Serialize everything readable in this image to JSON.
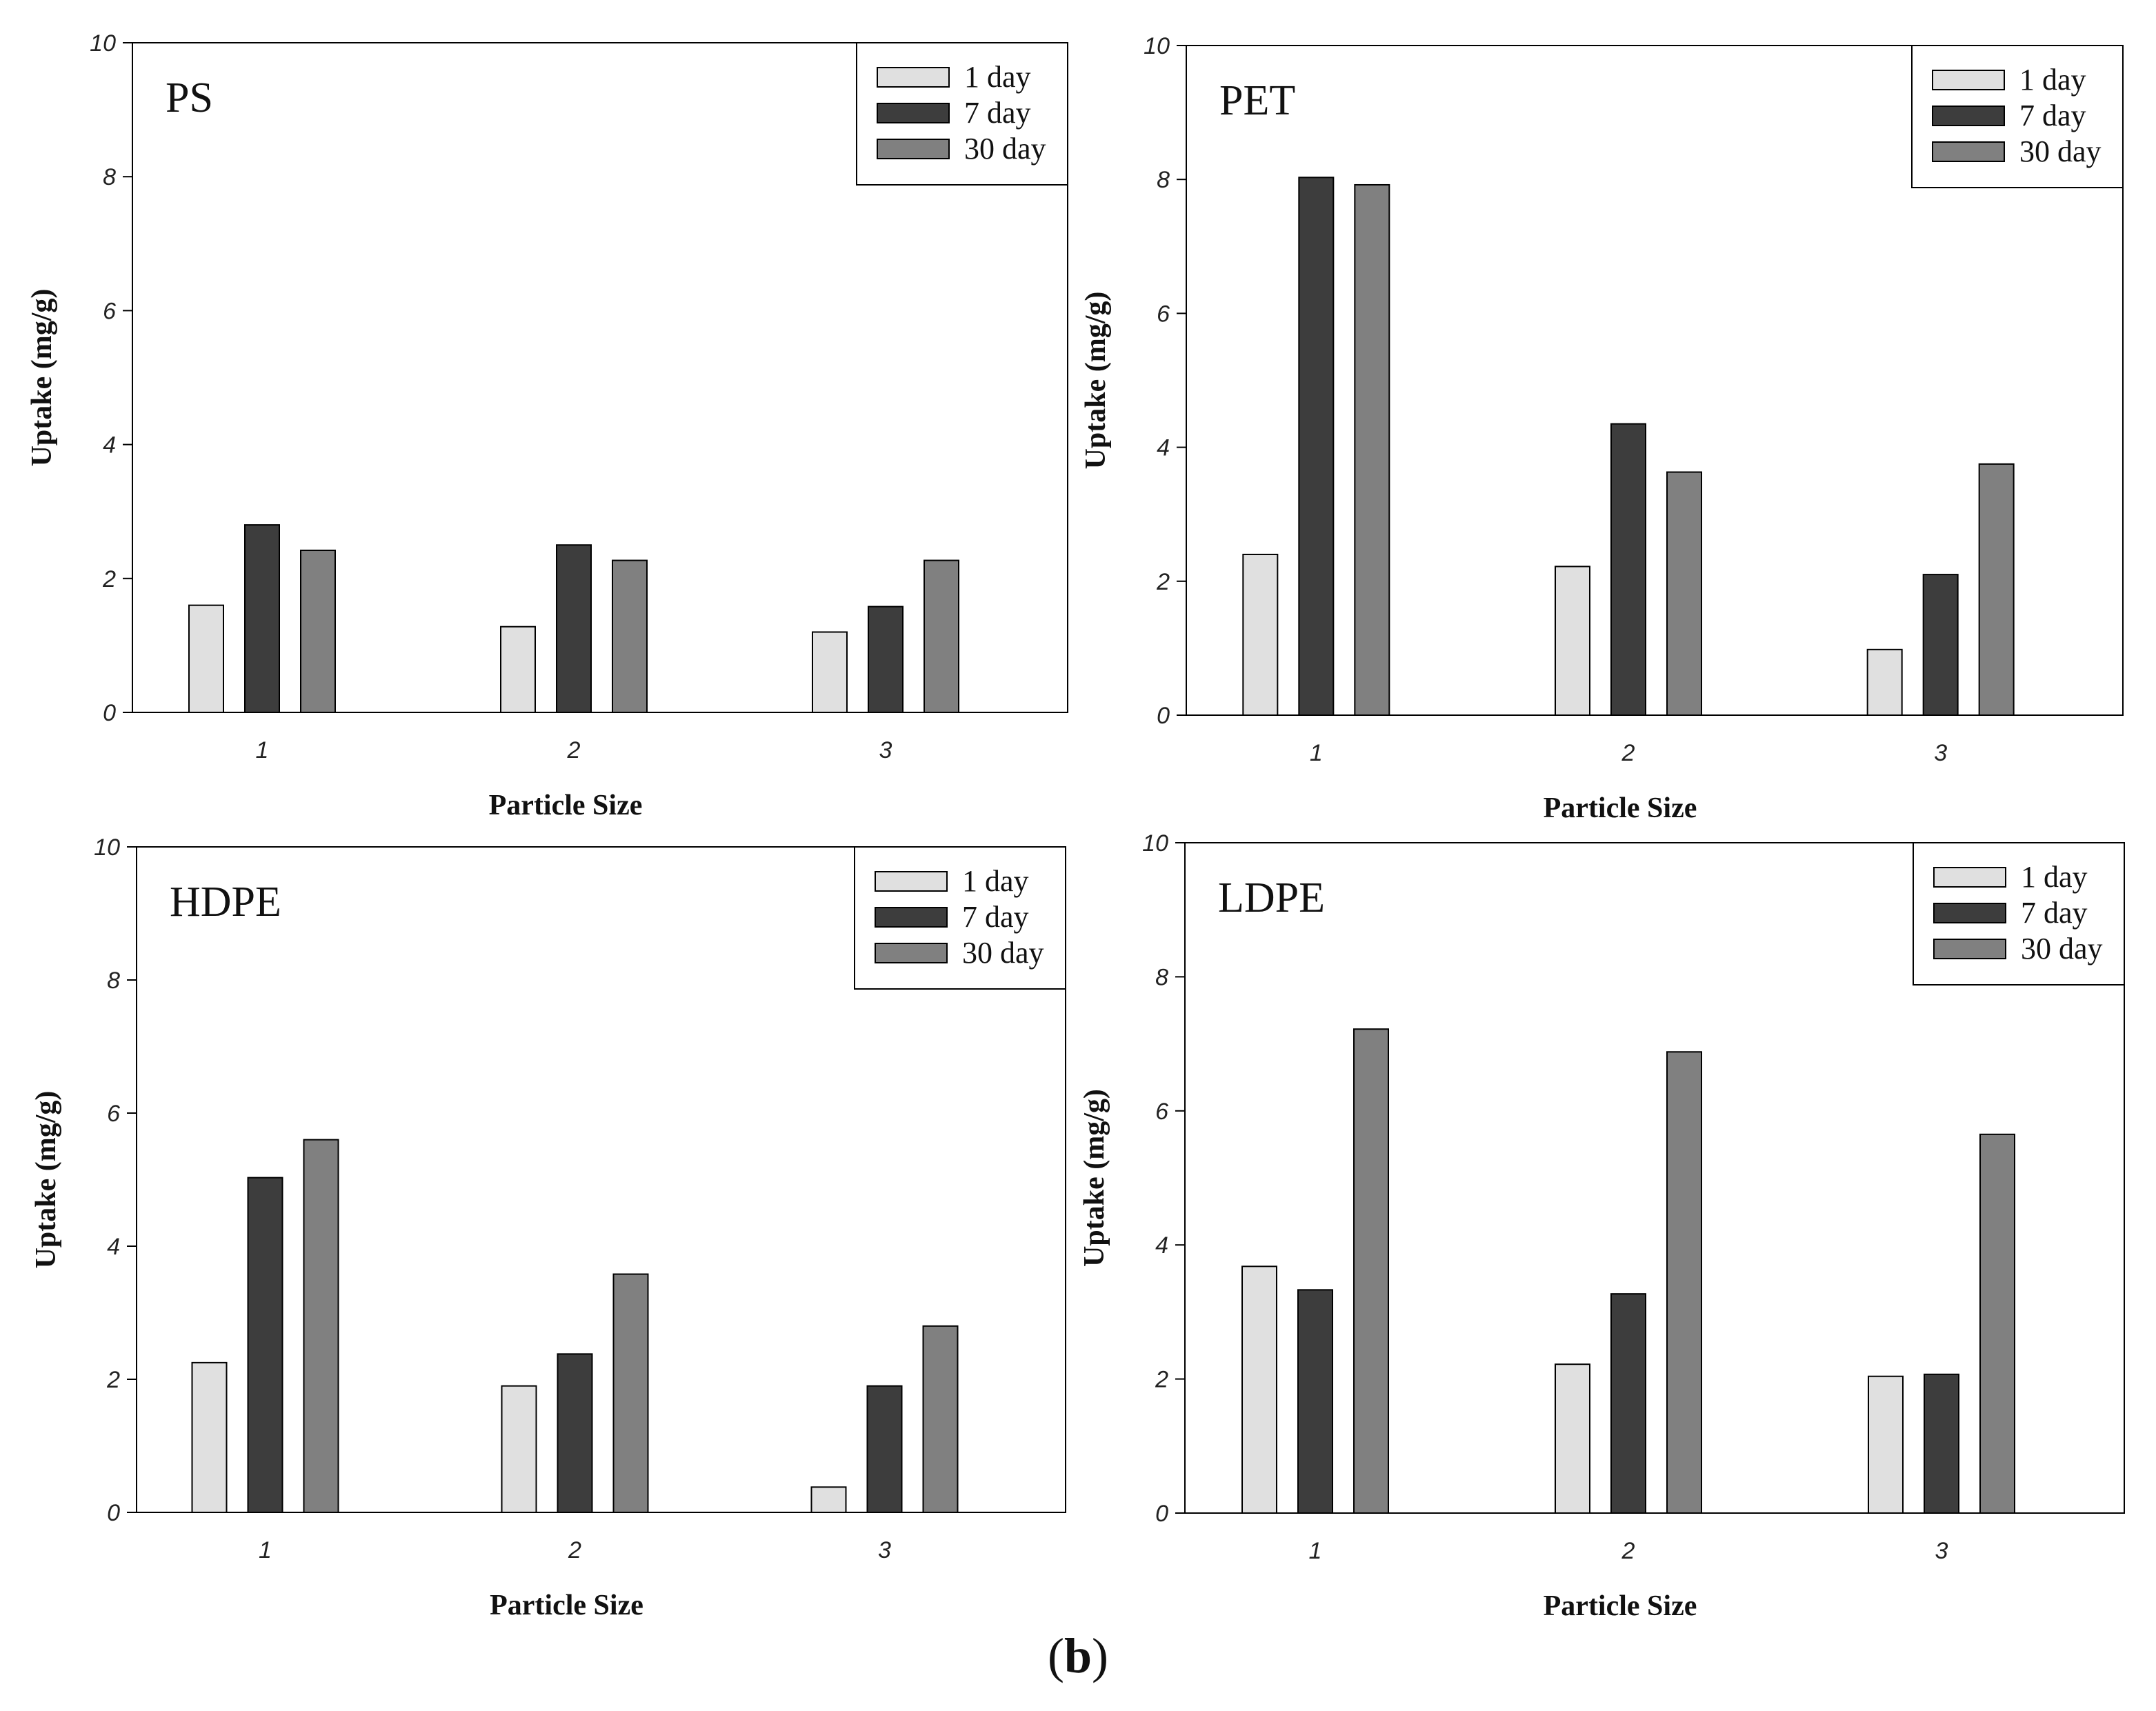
{
  "figure_caption": {
    "open": "(",
    "letter": "b",
    "close": ")"
  },
  "colors": {
    "day1": "#e0e0e0",
    "day7": "#3d3d3d",
    "day30": "#808080",
    "stroke": "#000000"
  },
  "chart_data": [
    {
      "type": "bar",
      "title": "PS",
      "categories": [
        "1",
        "2",
        "3"
      ],
      "series": [
        {
          "name": "1 day",
          "values": [
            1.6,
            1.28,
            1.2
          ]
        },
        {
          "name": "7 day",
          "values": [
            2.8,
            2.5,
            1.58
          ]
        },
        {
          "name": "30 day",
          "values": [
            2.42,
            2.27,
            2.27
          ]
        }
      ],
      "xlabel": "Particle Size",
      "ylabel": "Uptake (mg/g)",
      "ylim": [
        0,
        10
      ],
      "yticks": [
        "0",
        "2",
        "4",
        "6",
        "8",
        "10"
      ],
      "legend": "top-right"
    },
    {
      "type": "bar",
      "title": "PET",
      "categories": [
        "1",
        "2",
        "3"
      ],
      "series": [
        {
          "name": "1 day",
          "values": [
            2.4,
            2.22,
            0.98
          ]
        },
        {
          "name": "7 day",
          "values": [
            8.03,
            4.35,
            2.1
          ]
        },
        {
          "name": "30 day",
          "values": [
            7.92,
            3.63,
            3.75
          ]
        }
      ],
      "xlabel": "Particle Size",
      "ylabel": "Uptake (mg/g)",
      "ylim": [
        0,
        10
      ],
      "yticks": [
        "0",
        "2",
        "4",
        "6",
        "8",
        "10"
      ],
      "legend": "top-right"
    },
    {
      "type": "bar",
      "title": "HDPE",
      "categories": [
        "1",
        "2",
        "3"
      ],
      "series": [
        {
          "name": "1 day",
          "values": [
            2.25,
            1.9,
            0.38
          ]
        },
        {
          "name": "7 day",
          "values": [
            5.03,
            2.38,
            1.9
          ]
        },
        {
          "name": "30 day",
          "values": [
            5.6,
            3.58,
            2.8
          ]
        }
      ],
      "xlabel": "Particle Size",
      "ylabel": "Uptake (mg/g)",
      "ylim": [
        0,
        10
      ],
      "yticks": [
        "0",
        "2",
        "4",
        "6",
        "8",
        "10"
      ],
      "legend": "top-right"
    },
    {
      "type": "bar",
      "title": "LDPE",
      "categories": [
        "1",
        "2",
        "3"
      ],
      "series": [
        {
          "name": "1 day",
          "values": [
            3.68,
            2.22,
            2.04
          ]
        },
        {
          "name": "7 day",
          "values": [
            3.33,
            3.27,
            2.07
          ]
        },
        {
          "name": "30 day",
          "values": [
            7.22,
            6.88,
            5.65
          ]
        }
      ],
      "xlabel": "Particle Size",
      "ylabel": "Uptake (mg/g)",
      "ylim": [
        0,
        10
      ],
      "yticks": [
        "0",
        "2",
        "4",
        "6",
        "8",
        "10"
      ],
      "legend": "top-right"
    }
  ]
}
